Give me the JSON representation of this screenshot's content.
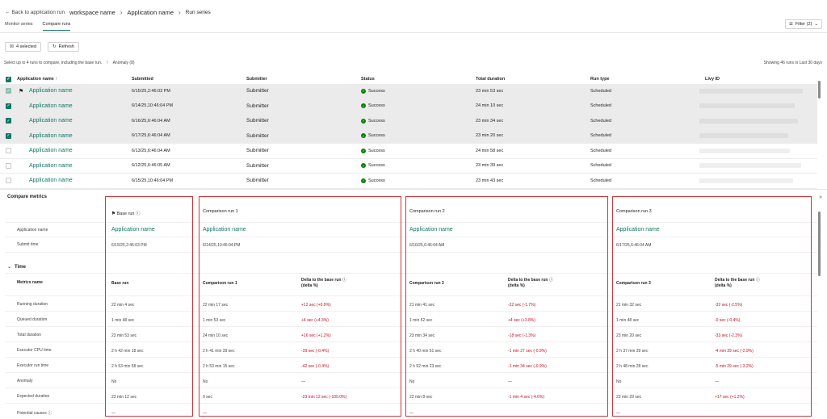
{
  "breadcrumb": {
    "back": "Back to application run",
    "workspace": "workspace name",
    "app": "Application name",
    "current": "Run series"
  },
  "tabs": [
    "Monitor series",
    "Compare runs"
  ],
  "filter_label": "Filter (2)",
  "toolbar": {
    "selected": "4 selected",
    "refresh": "Refresh"
  },
  "hint": "Select up to 4 runs to compare, including the base run.",
  "anomaly_label": "Anomaly (8)",
  "showing": "Showing 46 runs in Last 30 days",
  "columns": [
    "Application name",
    "Submitted",
    "Submitter",
    "Status",
    "Total duration",
    "Run type",
    "Livy ID"
  ],
  "sort_glyph": "↑",
  "rows": [
    {
      "app": "Application name",
      "submitted": "6/15/25,2:46:03 PM",
      "submitter": "Submitter",
      "status": "Success",
      "duration": "23 min 53 sec",
      "type": "Scheduled",
      "selected": true,
      "base": true
    },
    {
      "app": "Application name",
      "submitted": "6/14/25,10:46:04 PM",
      "submitter": "Submitter",
      "status": "Success",
      "duration": "24 min 10 sec",
      "type": "Scheduled",
      "selected": true,
      "base": false
    },
    {
      "app": "Application name",
      "submitted": "6/16/25,6:46:04 AM",
      "submitter": "Submitter",
      "status": "Success",
      "duration": "23 min 34 sec",
      "type": "Scheduled",
      "selected": true,
      "base": false
    },
    {
      "app": "Application name",
      "submitted": "6/17/25,6:46:04 AM",
      "submitter": "Submitter",
      "status": "Success",
      "duration": "23 min 20 sec",
      "type": "Scheduled",
      "selected": true,
      "base": false
    },
    {
      "app": "Application name",
      "submitted": "6/13/25,6:46:04 AM",
      "submitter": "Submitter",
      "status": "Success",
      "duration": "24 min 58 sec",
      "type": "Scheduled",
      "selected": false,
      "base": false
    },
    {
      "app": "Application name",
      "submitted": "6/12/25,6:46:05 AM",
      "submitter": "Submitter",
      "status": "Success",
      "duration": "23 min 39 sec",
      "type": "Scheduled",
      "selected": false,
      "base": false
    },
    {
      "app": "Application name",
      "submitted": "6/15/25,10:46:04 PM",
      "submitter": "Submitter",
      "status": "Success",
      "duration": "23 min 43 sec",
      "type": "Scheduled",
      "selected": false,
      "base": false
    }
  ],
  "compare": {
    "title": "Compare metrics",
    "labels": {
      "app": "Application name",
      "submit": "Submit time",
      "time": "Time",
      "metrics": "Metrics name"
    },
    "metrics": [
      "Running duration",
      "Queued duration",
      "Total duration",
      "Executor CPU time",
      "Executor run time",
      "Anomaly",
      "Expected duration",
      "Potential causes"
    ],
    "delta_header": "Delta to the base run",
    "delta_sub": "(delta %)",
    "base": {
      "title": "Base run",
      "app": "Application name",
      "submit": "6/15/25,2:46:03 PM",
      "header": "Base run",
      "values": [
        "22 min 4 sec",
        "1 min 48 sec",
        "23 min 53 sec",
        "2 h 42 min 18 sec",
        "2 h 53 min 58 sec",
        "No",
        "23 min 12 sec",
        "—"
      ]
    },
    "runs": [
      {
        "title": "Comparison run 1",
        "app": "Application name",
        "submit": "6/14/25,10:46:04 PM",
        "header": "Comparison run 1",
        "values": [
          "22 min 17 sec",
          "1 min 53 sec",
          "24 min 10 sec",
          "2 h 41 min 39 sec",
          "2 h 53 min 15 sec",
          "No",
          "0 sec",
          "—"
        ],
        "deltas": [
          "+12 sec (+0.9%)",
          "+4 sec (+4.3%)",
          "+16 sec (+1.2%)",
          "-39 sec (-0.4%)",
          "-42 sec (-0.4%)",
          "—",
          "-23 min 12 sec (-100.0%)",
          ""
        ]
      },
      {
        "title": "Comparison run 2",
        "app": "Application name",
        "submit": "6/16/25,6:46:04 AM",
        "header": "Comparison run 2",
        "values": [
          "21 min 41 sec",
          "1 min 52 sec",
          "23 min 34 sec",
          "2 h 40 min 51 sec",
          "2 h 52 min 23 sec",
          "No",
          "22 min 8 sec",
          "—"
        ],
        "deltas": [
          "-22 sec (-1.7%)",
          "+4 sec (+3.8%)",
          "-18 sec (-1.3%)",
          "-1 min 27 sec (-0.9%)",
          "-1 min 34 sec (-0.9%)",
          "—",
          "-1 min 4 sec (-4.6%)",
          ""
        ]
      },
      {
        "title": "Comparison run 3",
        "app": "Application name",
        "submit": "6/17/25,6:46:04 AM",
        "header": "Comparison run 3",
        "values": [
          "21 min 32 sec",
          "1 min 48 sec",
          "23 min 20 sec",
          "2 h 37 min 39 sec",
          "2 h 48 min 28 sec",
          "No",
          "23 min 29 sec",
          "—"
        ],
        "deltas": [
          "-32 sec (-2.5%)",
          "-0 sec (-0.4%)",
          "-33 sec (-2.3%)",
          "-4 min 39 sec (-2.9%)",
          "-5 min 29 sec (-3.2%)",
          "—",
          "+17 sec (+1.2%)",
          ""
        ]
      }
    ]
  },
  "colors": {
    "accent": "#117865",
    "highlight_border": "#d13438",
    "delta": "#c50f1f",
    "success": "#107c10"
  }
}
